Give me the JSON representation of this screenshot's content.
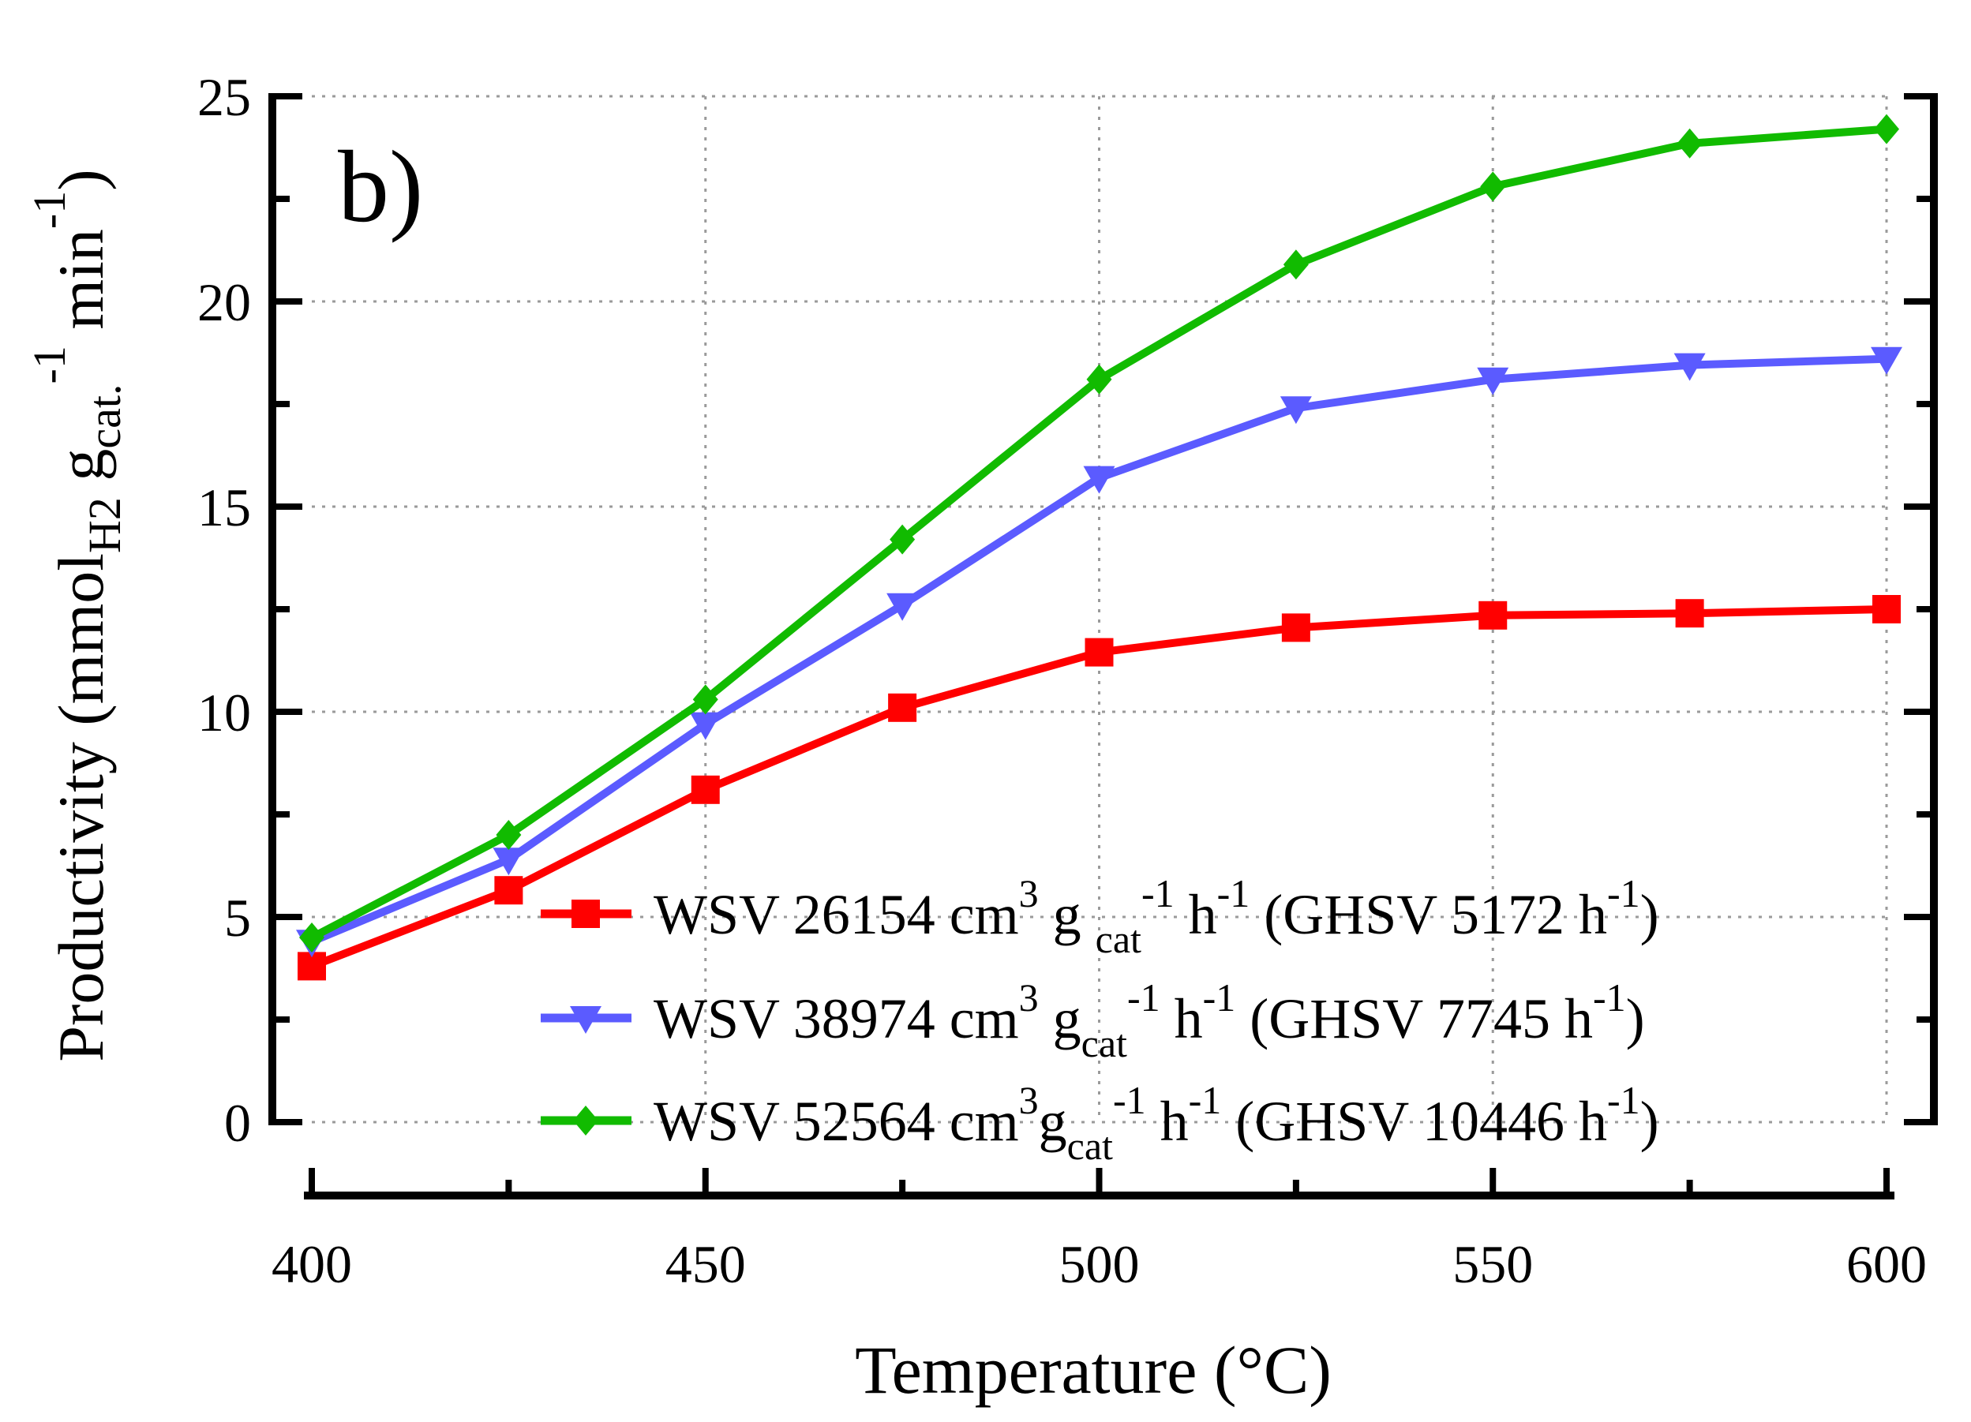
{
  "chart_data": {
    "type": "line",
    "panel_label": "b)",
    "xlabel": "Temperature (°C)",
    "ylabel": {
      "main": "Productivity (mmol",
      "sub1": "H2",
      "mid": " g",
      "sub2": "cat.",
      "sup1": "-1",
      "tail": " min",
      "sup2": "-1",
      "close": ")"
    },
    "xlim": [
      400,
      600
    ],
    "ylim": [
      0,
      25
    ],
    "x_ticks": [
      400,
      450,
      500,
      550,
      600
    ],
    "y_ticks": [
      0,
      5,
      10,
      15,
      20,
      25
    ],
    "grid": true,
    "legend_position": "bottom-right",
    "x": [
      400,
      425,
      450,
      475,
      500,
      525,
      550,
      575,
      600
    ],
    "series": [
      {
        "name": "WSV 26154 cm3 g cat-1 h-1 (GHSV 5172 h-1)",
        "legend_parts": [
          {
            "t": "WSV 26154 cm",
            "s": "n"
          },
          {
            "t": "3",
            "s": "sup"
          },
          {
            "t": " g ",
            "s": "n"
          },
          {
            "t": "cat",
            "s": "sub"
          },
          {
            "t": "-1",
            "s": "sup"
          },
          {
            "t": " h",
            "s": "n"
          },
          {
            "t": "-1",
            "s": "sup"
          },
          {
            "t": " (GHSV 5172 h",
            "s": "n"
          },
          {
            "t": "-1",
            "s": "sup"
          },
          {
            "t": ")",
            "s": "n"
          }
        ],
        "color": "#ff0000",
        "marker": "square",
        "values": [
          3.8,
          5.65,
          8.1,
          10.1,
          11.45,
          12.05,
          12.35,
          12.4,
          12.5
        ]
      },
      {
        "name": "WSV 38974 cm3 gcat-1 h-1 (GHSV 7745 h-1)",
        "legend_parts": [
          {
            "t": "WSV 38974 cm",
            "s": "n"
          },
          {
            "t": "3",
            "s": "sup"
          },
          {
            "t": " g",
            "s": "n"
          },
          {
            "t": "cat",
            "s": "sub"
          },
          {
            "t": "-1",
            "s": "sup"
          },
          {
            "t": " h",
            "s": "n"
          },
          {
            "t": "-1",
            "s": "sup"
          },
          {
            "t": " (GHSV 7745 h",
            "s": "n"
          },
          {
            "t": "-1",
            "s": "sup"
          },
          {
            "t": ")",
            "s": "n"
          }
        ],
        "color": "#5b5bff",
        "marker": "triangle-down",
        "values": [
          4.4,
          6.4,
          9.7,
          12.6,
          15.7,
          17.4,
          18.1,
          18.45,
          18.6
        ]
      },
      {
        "name": "WSV 52564 cm3gcat-1 h-1 (GHSV 10446 h-1)",
        "legend_parts": [
          {
            "t": "WSV 52564 cm",
            "s": "n"
          },
          {
            "t": "3",
            "s": "sup"
          },
          {
            "t": "g",
            "s": "n"
          },
          {
            "t": "cat",
            "s": "sub"
          },
          {
            "t": "-1",
            "s": "sup"
          },
          {
            "t": " h",
            "s": "n"
          },
          {
            "t": "-1",
            "s": "sup"
          },
          {
            "t": " (GHSV 10446 h",
            "s": "n"
          },
          {
            "t": "-1",
            "s": "sup"
          },
          {
            "t": ")",
            "s": "n"
          }
        ],
        "color": "#11bb00",
        "marker": "diamond",
        "values": [
          4.5,
          7.0,
          10.3,
          14.2,
          18.1,
          20.9,
          22.8,
          23.85,
          24.2
        ]
      }
    ]
  }
}
